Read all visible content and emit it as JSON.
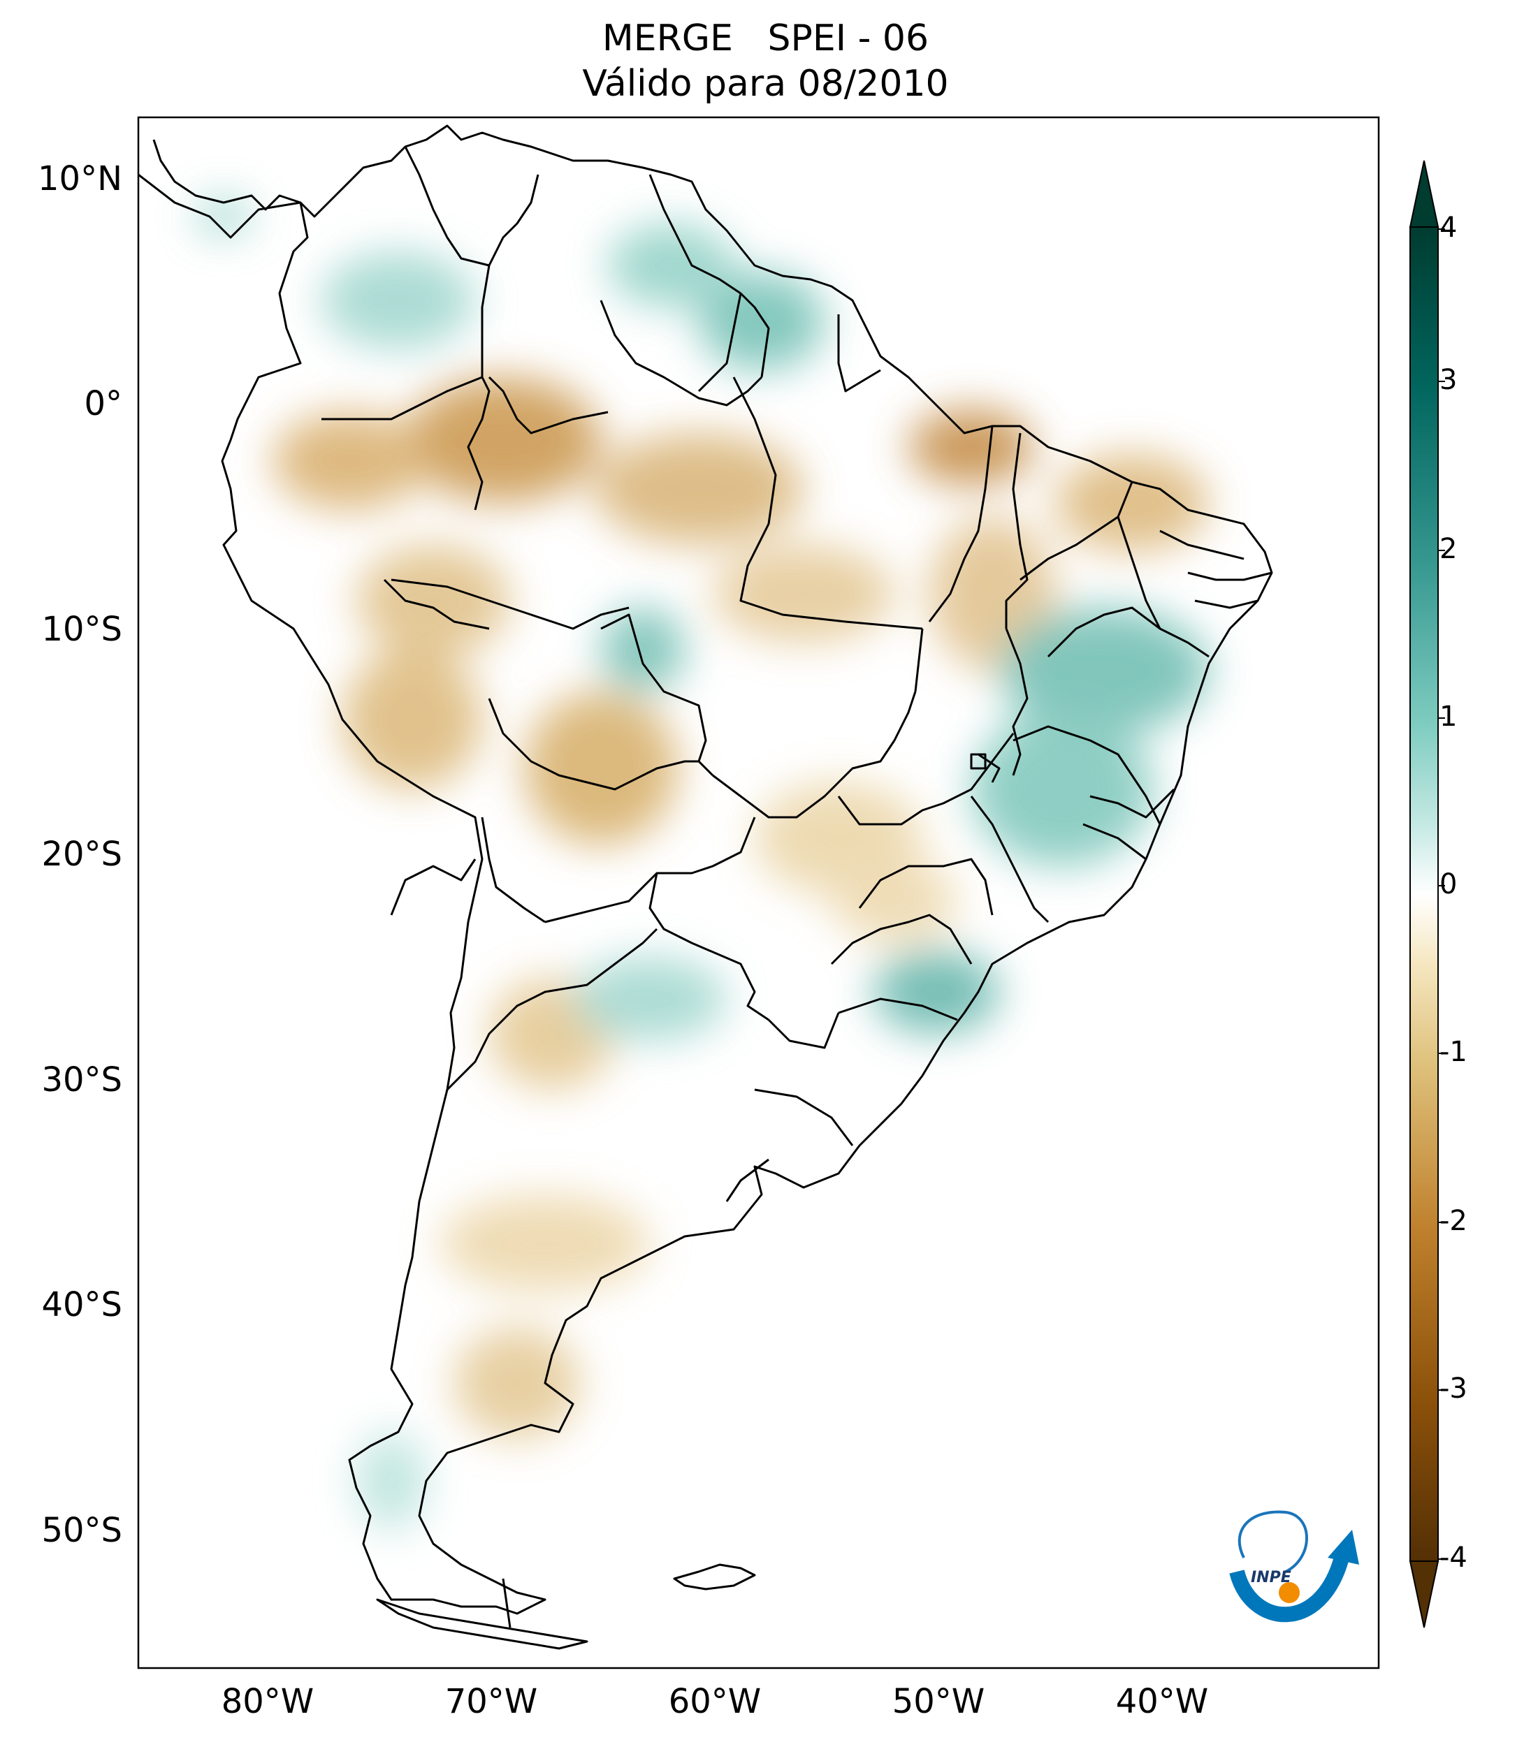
{
  "title": {
    "line1": "MERGE   SPEI - 06",
    "line2": "Válido para 08/2010"
  },
  "axes": {
    "lat_ticks": [
      "10°N",
      "0°",
      "10°S",
      "20°S",
      "30°S",
      "40°S",
      "50°S"
    ],
    "lon_ticks": [
      "80°W",
      "70°W",
      "60°W",
      "50°W",
      "40°W"
    ]
  },
  "colorbar": {
    "ticks": [
      "4",
      "3",
      "2",
      "1",
      "0",
      "-1",
      "-2",
      "-3",
      "-4"
    ],
    "extend": "both",
    "colors": {
      "dry_max": "#543005",
      "dry": "#bf812d",
      "dry_light": "#f6e8c3",
      "neutral": "#ffffff",
      "wet_light": "#c7eae5",
      "wet": "#35978f",
      "wet_max": "#003c30"
    }
  },
  "logo": {
    "text": "INPE"
  }
}
